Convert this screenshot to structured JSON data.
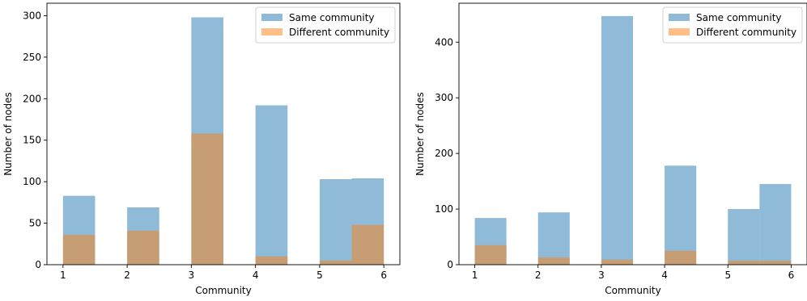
{
  "chart_data": [
    {
      "type": "bar",
      "xlabel": "Community",
      "ylabel": "Number of nodes",
      "xlim": [
        0.75,
        6.25
      ],
      "ylim": [
        0,
        315
      ],
      "xticks": [
        1,
        2,
        3,
        4,
        5,
        6
      ],
      "yticks": [
        0,
        50,
        100,
        150,
        200,
        250,
        300
      ],
      "bin_edges": [
        1.0,
        1.5,
        2.0,
        2.5,
        3.0,
        3.5,
        4.0,
        4.5,
        5.0,
        5.5,
        6.0
      ],
      "grid": false,
      "legend_loc": "top-right",
      "series": [
        {
          "name": "Same community",
          "color": "#1f77b4",
          "alpha": 0.5,
          "values": [
            83,
            0,
            69,
            0,
            298,
            0,
            192,
            0,
            103,
            104
          ]
        },
        {
          "name": "Different community",
          "color": "#ff7f0e",
          "alpha": 0.5,
          "values": [
            36,
            0,
            41,
            0,
            158,
            0,
            10,
            0,
            5,
            48
          ]
        }
      ]
    },
    {
      "type": "bar",
      "xlabel": "Community",
      "ylabel": "Number of nodes",
      "xlim": [
        0.75,
        6.25
      ],
      "ylim": [
        0,
        470
      ],
      "xticks": [
        1,
        2,
        3,
        4,
        5,
        6
      ],
      "yticks": [
        0,
        100,
        200,
        300,
        400
      ],
      "bin_edges": [
        1.0,
        1.5,
        2.0,
        2.5,
        3.0,
        3.5,
        4.0,
        4.5,
        5.0,
        5.5,
        6.0
      ],
      "grid": false,
      "legend_loc": "top-right",
      "series": [
        {
          "name": "Same community",
          "color": "#1f77b4",
          "alpha": 0.5,
          "values": [
            84,
            0,
            94,
            0,
            447,
            0,
            178,
            0,
            100,
            145
          ]
        },
        {
          "name": "Different community",
          "color": "#ff7f0e",
          "alpha": 0.5,
          "values": [
            35,
            0,
            13,
            0,
            9,
            0,
            25,
            0,
            7,
            7
          ]
        }
      ]
    }
  ]
}
